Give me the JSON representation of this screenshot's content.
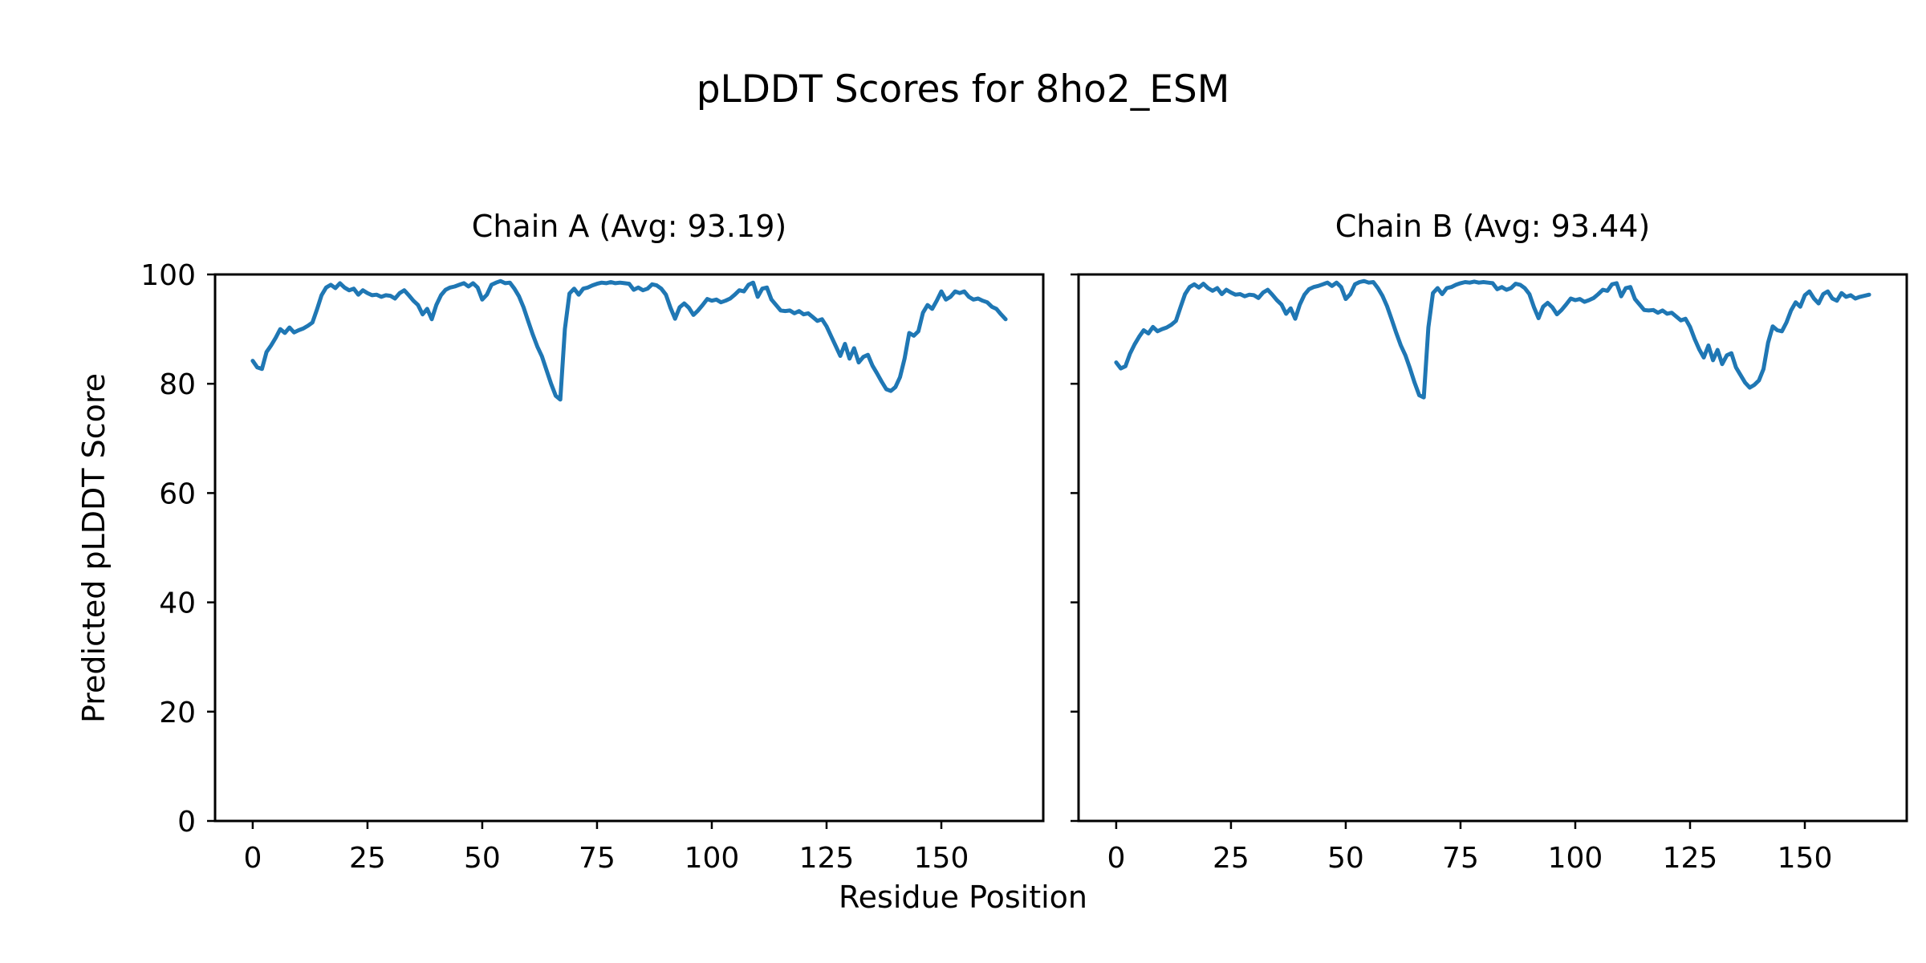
{
  "figure": {
    "title": "pLDDT Scores for 8ho2_ESM",
    "xlabel": "Residue Position",
    "ylabel": "Predicted pLDDT Score",
    "background_color": "#ffffff",
    "spine_color": "#000000",
    "line_color": "#1f77b4"
  },
  "chart_data": [
    {
      "type": "line",
      "title": "Chain A (Avg: 93.19)",
      "avg": 93.19,
      "xlabel": "Residue Position",
      "ylabel": "Predicted pLDDT Score",
      "xlim": [
        -8.2,
        172.2
      ],
      "ylim": [
        0,
        100
      ],
      "xticks": [
        0,
        25,
        50,
        75,
        100,
        125,
        150
      ],
      "yticks": [
        0,
        20,
        40,
        60,
        80,
        100
      ],
      "ytick_labels_visible": true,
      "grid": false,
      "legend": "none",
      "series": [
        {
          "name": "Chain A",
          "color": "#1f77b4",
          "x_start": 0,
          "x_step": 1,
          "values": [
            84.2,
            83.0,
            82.7,
            85.8,
            87.0,
            88.4,
            90.0,
            89.3,
            90.3,
            89.4,
            89.8,
            90.1,
            90.6,
            91.2,
            93.6,
            96.2,
            97.6,
            98.1,
            97.5,
            98.4,
            97.6,
            97.1,
            97.4,
            96.3,
            97.1,
            96.6,
            96.2,
            96.3,
            95.9,
            96.2,
            96.1,
            95.6,
            96.6,
            97.1,
            96.2,
            95.2,
            94.4,
            92.7,
            93.7,
            91.8,
            94.4,
            96.2,
            97.2,
            97.6,
            97.8,
            98.1,
            98.4,
            97.8,
            98.4,
            97.6,
            95.4,
            96.3,
            98.1,
            98.5,
            98.8,
            98.4,
            98.5,
            97.4,
            96.0,
            94.0,
            91.5,
            89.0,
            86.8,
            85.0,
            82.5,
            80.0,
            77.8,
            77.1,
            90.0,
            96.5,
            97.4,
            96.3,
            97.4,
            97.6,
            98.0,
            98.3,
            98.5,
            98.4,
            98.6,
            98.4,
            98.5,
            98.4,
            98.3,
            97.2,
            97.6,
            97.1,
            97.4,
            98.2,
            98.0,
            97.4,
            96.3,
            93.9,
            91.9,
            94.0,
            94.7,
            93.9,
            92.6,
            93.4,
            94.4,
            95.5,
            95.2,
            95.4,
            94.9,
            95.2,
            95.6,
            96.3,
            97.1,
            96.9,
            98.1,
            98.5,
            95.9,
            97.4,
            97.6,
            95.4,
            94.4,
            93.4,
            93.3,
            93.4,
            92.9,
            93.3,
            92.7,
            92.9,
            92.2,
            91.5,
            91.8,
            90.5,
            88.7,
            86.9,
            85.1,
            87.3,
            84.6,
            86.5,
            83.9,
            84.9,
            85.3,
            83.3,
            81.9,
            80.4,
            79.0,
            78.7,
            79.4,
            81.2,
            84.6,
            89.3,
            88.8,
            89.6,
            93.0,
            94.4,
            93.7,
            95.2,
            96.9,
            95.4,
            95.9,
            96.9,
            96.6,
            96.9,
            95.9,
            95.4,
            95.6,
            95.2,
            94.9,
            94.1,
            93.7,
            92.7,
            91.8
          ]
        }
      ]
    },
    {
      "type": "line",
      "title": "Chain B (Avg: 93.44)",
      "avg": 93.44,
      "xlabel": "Residue Position",
      "ylabel": "Predicted pLDDT Score",
      "xlim": [
        -8.2,
        172.2
      ],
      "ylim": [
        0,
        100
      ],
      "xticks": [
        0,
        25,
        50,
        75,
        100,
        125,
        150
      ],
      "yticks": [
        0,
        20,
        40,
        60,
        80,
        100
      ],
      "ytick_labels_visible": false,
      "grid": false,
      "legend": "none",
      "series": [
        {
          "name": "Chain B",
          "color": "#1f77b4",
          "x_start": 0,
          "x_step": 1,
          "values": [
            83.9,
            82.8,
            83.2,
            85.5,
            87.2,
            88.6,
            89.8,
            89.2,
            90.4,
            89.6,
            90.0,
            90.3,
            90.8,
            91.5,
            94.0,
            96.4,
            97.7,
            98.2,
            97.6,
            98.3,
            97.5,
            97.0,
            97.5,
            96.4,
            97.2,
            96.7,
            96.3,
            96.4,
            96.0,
            96.3,
            96.2,
            95.7,
            96.7,
            97.2,
            96.3,
            95.3,
            94.5,
            92.8,
            93.8,
            91.9,
            94.5,
            96.3,
            97.3,
            97.7,
            97.9,
            98.2,
            98.5,
            97.9,
            98.5,
            97.7,
            95.5,
            96.4,
            98.2,
            98.6,
            98.8,
            98.5,
            98.6,
            97.5,
            96.1,
            94.2,
            91.8,
            89.3,
            87.0,
            85.2,
            82.8,
            80.2,
            77.9,
            77.5,
            90.3,
            96.6,
            97.5,
            96.4,
            97.5,
            97.7,
            98.1,
            98.4,
            98.6,
            98.5,
            98.7,
            98.5,
            98.6,
            98.5,
            98.4,
            97.3,
            97.7,
            97.2,
            97.5,
            98.3,
            98.1,
            97.5,
            96.4,
            94.0,
            92.0,
            94.1,
            94.8,
            94.0,
            92.7,
            93.5,
            94.5,
            95.6,
            95.3,
            95.5,
            95.0,
            95.3,
            95.7,
            96.4,
            97.2,
            97.0,
            98.2,
            98.4,
            96.0,
            97.5,
            97.7,
            95.5,
            94.5,
            93.5,
            93.4,
            93.5,
            93.0,
            93.4,
            92.8,
            93.0,
            92.3,
            91.6,
            91.9,
            90.4,
            88.2,
            86.3,
            84.8,
            87.0,
            84.3,
            86.2,
            83.6,
            85.2,
            85.6,
            83.0,
            81.6,
            80.2,
            79.3,
            79.8,
            80.6,
            82.7,
            87.5,
            90.5,
            89.8,
            89.6,
            91.2,
            93.4,
            94.9,
            94.1,
            96.2,
            96.9,
            95.6,
            94.7,
            96.4,
            96.9,
            95.6,
            95.2,
            96.6,
            95.9,
            96.2,
            95.6,
            95.9,
            96.1,
            96.3
          ]
        }
      ]
    }
  ]
}
